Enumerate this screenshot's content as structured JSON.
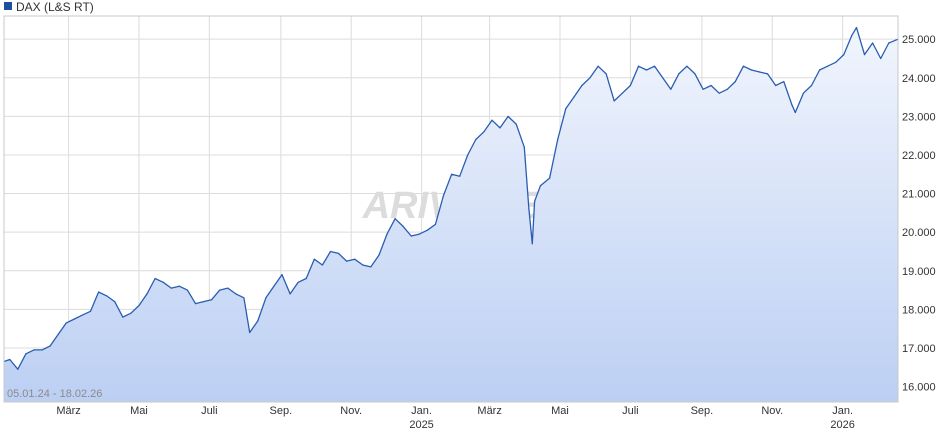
{
  "legend": {
    "label": "DAX (L&S RT)",
    "color": "#1f4e9c"
  },
  "range_label": "05.01.24 - 18.02.26",
  "watermark": "ARIVA.DE",
  "colors": {
    "line": "#2a5db0",
    "fill_top": "#f1f5fd",
    "fill_bottom": "#bccff3",
    "grid": "#dcdcdc"
  },
  "chart_data": {
    "type": "area",
    "title": "",
    "xlabel": "",
    "ylabel": "",
    "legend_position": "top-left",
    "grid": true,
    "ylim": [
      15600,
      25600
    ],
    "x_ticks": [
      {
        "date": "2024-03-01",
        "label": "März",
        "sublabel": ""
      },
      {
        "date": "2024-05-01",
        "label": "Mai",
        "sublabel": ""
      },
      {
        "date": "2024-07-01",
        "label": "Juli",
        "sublabel": ""
      },
      {
        "date": "2024-09-01",
        "label": "Sep.",
        "sublabel": ""
      },
      {
        "date": "2024-11-01",
        "label": "Nov.",
        "sublabel": ""
      },
      {
        "date": "2025-01-01",
        "label": "Jan.",
        "sublabel": "2025"
      },
      {
        "date": "2025-03-01",
        "label": "März",
        "sublabel": ""
      },
      {
        "date": "2025-05-01",
        "label": "Mai",
        "sublabel": ""
      },
      {
        "date": "2025-07-01",
        "label": "Juli",
        "sublabel": ""
      },
      {
        "date": "2025-09-01",
        "label": "Sep.",
        "sublabel": ""
      },
      {
        "date": "2025-11-01",
        "label": "Nov.",
        "sublabel": ""
      },
      {
        "date": "2026-01-01",
        "label": "Jan.",
        "sublabel": "2026"
      }
    ],
    "y_ticks": [
      {
        "value": 16000,
        "label": "16.000"
      },
      {
        "value": 17000,
        "label": "17.000"
      },
      {
        "value": 18000,
        "label": "18.000"
      },
      {
        "value": 19000,
        "label": "19.000"
      },
      {
        "value": 20000,
        "label": "20.000"
      },
      {
        "value": 21000,
        "label": "21.000"
      },
      {
        "value": 22000,
        "label": "22.000"
      },
      {
        "value": 23000,
        "label": "23.000"
      },
      {
        "value": 24000,
        "label": "24.000"
      },
      {
        "value": 25000,
        "label": "25.000"
      }
    ],
    "series": [
      {
        "name": "DAX (L&S RT)",
        "points": [
          [
            "2024-01-05",
            16650
          ],
          [
            "2024-01-10",
            16700
          ],
          [
            "2024-01-17",
            16450
          ],
          [
            "2024-01-24",
            16850
          ],
          [
            "2024-01-31",
            16950
          ],
          [
            "2024-02-07",
            16950
          ],
          [
            "2024-02-14",
            17050
          ],
          [
            "2024-02-21",
            17350
          ],
          [
            "2024-02-28",
            17650
          ],
          [
            "2024-03-06",
            17750
          ],
          [
            "2024-03-13",
            17850
          ],
          [
            "2024-03-20",
            17950
          ],
          [
            "2024-03-27",
            18450
          ],
          [
            "2024-04-03",
            18350
          ],
          [
            "2024-04-10",
            18200
          ],
          [
            "2024-04-17",
            17800
          ],
          [
            "2024-04-24",
            17900
          ],
          [
            "2024-05-01",
            18100
          ],
          [
            "2024-05-08",
            18400
          ],
          [
            "2024-05-15",
            18800
          ],
          [
            "2024-05-22",
            18700
          ],
          [
            "2024-05-29",
            18550
          ],
          [
            "2024-06-05",
            18600
          ],
          [
            "2024-06-12",
            18500
          ],
          [
            "2024-06-19",
            18150
          ],
          [
            "2024-06-26",
            18200
          ],
          [
            "2024-07-03",
            18250
          ],
          [
            "2024-07-10",
            18500
          ],
          [
            "2024-07-17",
            18550
          ],
          [
            "2024-07-24",
            18400
          ],
          [
            "2024-07-31",
            18300
          ],
          [
            "2024-08-05",
            17400
          ],
          [
            "2024-08-12",
            17700
          ],
          [
            "2024-08-19",
            18300
          ],
          [
            "2024-08-26",
            18600
          ],
          [
            "2024-09-02",
            18900
          ],
          [
            "2024-09-09",
            18400
          ],
          [
            "2024-09-16",
            18700
          ],
          [
            "2024-09-23",
            18800
          ],
          [
            "2024-09-30",
            19300
          ],
          [
            "2024-10-07",
            19150
          ],
          [
            "2024-10-14",
            19500
          ],
          [
            "2024-10-21",
            19450
          ],
          [
            "2024-10-28",
            19250
          ],
          [
            "2024-11-04",
            19300
          ],
          [
            "2024-11-11",
            19150
          ],
          [
            "2024-11-18",
            19100
          ],
          [
            "2024-11-25",
            19400
          ],
          [
            "2024-12-02",
            19950
          ],
          [
            "2024-12-09",
            20350
          ],
          [
            "2024-12-16",
            20150
          ],
          [
            "2024-12-23",
            19900
          ],
          [
            "2024-12-30",
            19950
          ],
          [
            "2025-01-06",
            20050
          ],
          [
            "2025-01-13",
            20200
          ],
          [
            "2025-01-20",
            20950
          ],
          [
            "2025-01-27",
            21500
          ],
          [
            "2025-02-03",
            21450
          ],
          [
            "2025-02-10",
            22000
          ],
          [
            "2025-02-17",
            22400
          ],
          [
            "2025-02-24",
            22600
          ],
          [
            "2025-03-03",
            22900
          ],
          [
            "2025-03-10",
            22700
          ],
          [
            "2025-03-17",
            23000
          ],
          [
            "2025-03-24",
            22800
          ],
          [
            "2025-03-31",
            22200
          ],
          [
            "2025-04-04",
            20600
          ],
          [
            "2025-04-07",
            19700
          ],
          [
            "2025-04-09",
            20800
          ],
          [
            "2025-04-14",
            21200
          ],
          [
            "2025-04-22",
            21400
          ],
          [
            "2025-04-29",
            22400
          ],
          [
            "2025-05-06",
            23200
          ],
          [
            "2025-05-13",
            23500
          ],
          [
            "2025-05-20",
            23800
          ],
          [
            "2025-05-27",
            24000
          ],
          [
            "2025-06-03",
            24300
          ],
          [
            "2025-06-10",
            24100
          ],
          [
            "2025-06-17",
            23400
          ],
          [
            "2025-06-24",
            23600
          ],
          [
            "2025-07-01",
            23800
          ],
          [
            "2025-07-08",
            24300
          ],
          [
            "2025-07-15",
            24200
          ],
          [
            "2025-07-22",
            24300
          ],
          [
            "2025-07-29",
            24000
          ],
          [
            "2025-08-05",
            23700
          ],
          [
            "2025-08-12",
            24100
          ],
          [
            "2025-08-19",
            24300
          ],
          [
            "2025-08-26",
            24100
          ],
          [
            "2025-09-02",
            23700
          ],
          [
            "2025-09-09",
            23800
          ],
          [
            "2025-09-16",
            23600
          ],
          [
            "2025-09-23",
            23700
          ],
          [
            "2025-09-30",
            23900
          ],
          [
            "2025-10-07",
            24300
          ],
          [
            "2025-10-14",
            24200
          ],
          [
            "2025-10-21",
            24150
          ],
          [
            "2025-10-28",
            24100
          ],
          [
            "2025-11-04",
            23800
          ],
          [
            "2025-11-11",
            23900
          ],
          [
            "2025-11-18",
            23300
          ],
          [
            "2025-11-21",
            23100
          ],
          [
            "2025-11-28",
            23600
          ],
          [
            "2025-12-05",
            23800
          ],
          [
            "2025-12-12",
            24200
          ],
          [
            "2025-12-19",
            24300
          ],
          [
            "2025-12-26",
            24400
          ],
          [
            "2026-01-02",
            24600
          ],
          [
            "2026-01-09",
            25100
          ],
          [
            "2026-01-13",
            25300
          ],
          [
            "2026-01-20",
            24600
          ],
          [
            "2026-01-27",
            24900
          ],
          [
            "2026-02-03",
            24500
          ],
          [
            "2026-02-10",
            24900
          ],
          [
            "2026-02-18",
            25000
          ]
        ]
      }
    ]
  }
}
